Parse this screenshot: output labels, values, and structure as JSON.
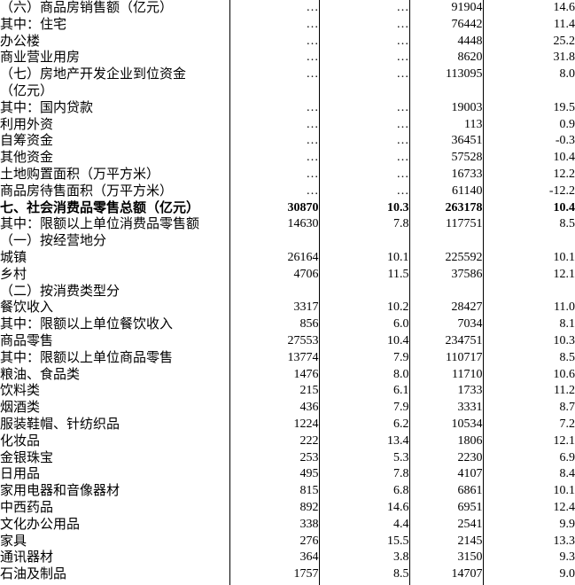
{
  "table": {
    "no_data_marker": "…",
    "colors": {
      "text": "#000000",
      "border": "#000000",
      "background": "#ffffff"
    },
    "rows": [
      {
        "label": "（六）商品房销售额（亿元）",
        "indent": 0,
        "bold": false,
        "values": [
          "…",
          "…",
          "91904",
          "14.6"
        ]
      },
      {
        "label": "其中：住宅",
        "indent": 0,
        "bold": false,
        "values": [
          "…",
          "…",
          "76442",
          "11.4"
        ]
      },
      {
        "label": "办公楼",
        "indent": 3,
        "bold": false,
        "values": [
          "…",
          "…",
          "4448",
          "25.2"
        ]
      },
      {
        "label": "商业营业用房",
        "indent": 3,
        "bold": false,
        "values": [
          "…",
          "…",
          "8620",
          "31.8"
        ]
      },
      {
        "label": "（七）房地产开发企业到位资金\n（亿元）",
        "indent": 0,
        "bold": false,
        "values": [
          "…",
          "…",
          "113095",
          "8.0"
        ]
      },
      {
        "label": "其中：国内贷款",
        "indent": 0,
        "bold": false,
        "values": [
          "…",
          "…",
          "19003",
          "19.5"
        ]
      },
      {
        "label": "利用外资",
        "indent": 3,
        "bold": false,
        "values": [
          "…",
          "…",
          "113",
          "0.9"
        ]
      },
      {
        "label": "自筹资金",
        "indent": 3,
        "bold": false,
        "values": [
          "…",
          "…",
          "36451",
          "-0.3"
        ]
      },
      {
        "label": "其他资金",
        "indent": 2,
        "bold": false,
        "values": [
          "…",
          "…",
          "57528",
          "10.4"
        ]
      },
      {
        "label": "土地购置面积（万平方米）",
        "indent": 0,
        "bold": false,
        "values": [
          "…",
          "…",
          "16733",
          "12.2"
        ]
      },
      {
        "label": "商品房待售面积（万平方米）",
        "indent": 0,
        "bold": false,
        "values": [
          "…",
          "…",
          "61140",
          "-12.2"
        ]
      },
      {
        "label": "七、社会消费品零售总额（亿元）",
        "indent": 0,
        "bold": true,
        "values": [
          "30870",
          "10.3",
          "263178",
          "10.4"
        ]
      },
      {
        "label": "其中：限额以上单位消费品零售额",
        "indent": 0,
        "bold": false,
        "values": [
          "14630",
          "7.8",
          "117751",
          "8.5"
        ]
      },
      {
        "label": "（一）按经营地分",
        "indent": 0,
        "bold": false,
        "values": [
          "",
          "",
          "",
          ""
        ]
      },
      {
        "label": "城镇",
        "indent": 0,
        "bold": false,
        "values": [
          "26164",
          "10.1",
          "225592",
          "10.1"
        ]
      },
      {
        "label": "乡村",
        "indent": 0,
        "bold": false,
        "values": [
          "4706",
          "11.5",
          "37586",
          "12.1"
        ]
      },
      {
        "label": "（二）按消费类型分",
        "indent": 0,
        "bold": false,
        "values": [
          "",
          "",
          "",
          ""
        ]
      },
      {
        "label": "餐饮收入",
        "indent": 0,
        "bold": false,
        "values": [
          "3317",
          "10.2",
          "28427",
          "11.0"
        ]
      },
      {
        "label": "其中：限额以上单位餐饮收入",
        "indent": 1,
        "bold": false,
        "values": [
          "856",
          "6.0",
          "7034",
          "8.1"
        ]
      },
      {
        "label": "商品零售",
        "indent": 0,
        "bold": false,
        "values": [
          "27553",
          "10.4",
          "234751",
          "10.3"
        ]
      },
      {
        "label": "其中：限额以上单位商品零售",
        "indent": 1,
        "bold": false,
        "values": [
          "13774",
          "7.9",
          "110717",
          "8.5"
        ]
      },
      {
        "label": "粮油、食品类",
        "indent": 1,
        "bold": false,
        "values": [
          "1476",
          "8.0",
          "11710",
          "10.6"
        ]
      },
      {
        "label": "饮料类",
        "indent": 1,
        "bold": false,
        "values": [
          "215",
          "6.1",
          "1733",
          "11.2"
        ]
      },
      {
        "label": "烟酒类",
        "indent": 1,
        "bold": false,
        "values": [
          "436",
          "7.9",
          "3331",
          "8.7"
        ]
      },
      {
        "label": "服装鞋帽、针纺织品",
        "indent": 1,
        "bold": false,
        "values": [
          "1224",
          "6.2",
          "10534",
          "7.2"
        ]
      },
      {
        "label": "化妆品",
        "indent": 1,
        "bold": false,
        "values": [
          "222",
          "13.4",
          "1806",
          "12.1"
        ]
      },
      {
        "label": "金银珠宝",
        "indent": 1,
        "bold": false,
        "values": [
          "253",
          "5.3",
          "2230",
          "6.9"
        ]
      },
      {
        "label": "日用品",
        "indent": 1,
        "bold": false,
        "values": [
          "495",
          "7.8",
          "4107",
          "8.4"
        ]
      },
      {
        "label": "家用电器和音像器材",
        "indent": 1,
        "bold": false,
        "values": [
          "815",
          "6.8",
          "6861",
          "10.1"
        ]
      },
      {
        "label": "中西药品",
        "indent": 1,
        "bold": false,
        "values": [
          "892",
          "14.6",
          "6951",
          "12.4"
        ]
      },
      {
        "label": "文化办公用品",
        "indent": 1,
        "bold": false,
        "values": [
          "338",
          "4.4",
          "2541",
          "9.9"
        ]
      },
      {
        "label": "家具",
        "indent": 1,
        "bold": false,
        "values": [
          "276",
          "15.5",
          "2145",
          "13.3"
        ]
      },
      {
        "label": "通讯器材",
        "indent": 1,
        "bold": false,
        "values": [
          "364",
          "3.8",
          "3150",
          "9.3"
        ]
      },
      {
        "label": "石油及制品",
        "indent": 1,
        "bold": false,
        "values": [
          "1757",
          "8.5",
          "14707",
          "9.0"
        ]
      }
    ]
  }
}
